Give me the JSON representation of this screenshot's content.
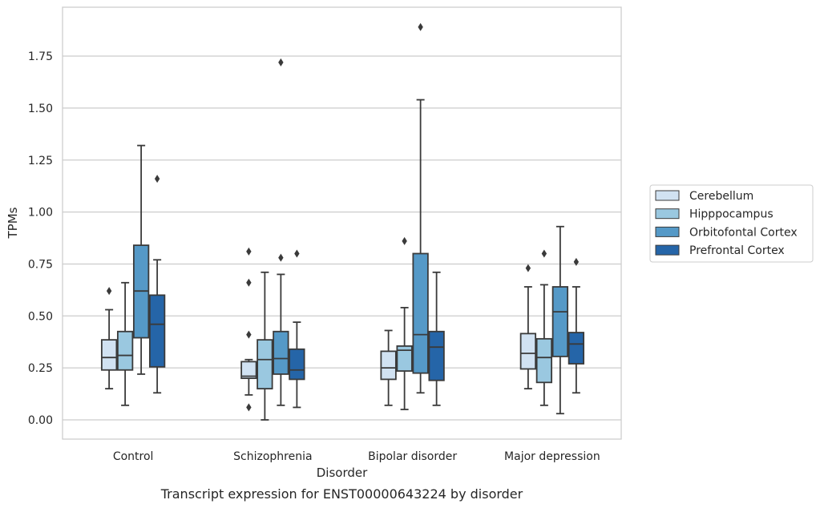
{
  "chart_data": {
    "type": "box",
    "caption": "Transcript expression for ENST00000643224 by disorder",
    "xlabel": "Disorder",
    "ylabel": "TPMs",
    "ylim": [
      -0.09,
      1.98
    ],
    "yticks": [
      0.0,
      0.25,
      0.5,
      0.75,
      1.0,
      1.25,
      1.5,
      1.75
    ],
    "ytick_labels": [
      "0.00",
      "0.25",
      "0.50",
      "0.75",
      "1.00",
      "1.25",
      "1.50",
      "1.75"
    ],
    "grid": "horizontal",
    "legend_position": "right",
    "categories": [
      "Control",
      "Schizophrenia",
      "Bipolar disorder",
      "Major depression"
    ],
    "series": [
      {
        "name": "Cerebellum",
        "color": "#d1e2f2",
        "boxes": [
          {
            "whislo": 0.15,
            "q1": 0.24,
            "med": 0.3,
            "q3": 0.385,
            "whishi": 0.53,
            "fliers": [
              0.62
            ]
          },
          {
            "whislo": 0.12,
            "q1": 0.2,
            "med": 0.21,
            "q3": 0.28,
            "whishi": 0.29,
            "fliers": [
              0.06,
              0.41,
              0.66,
              0.81
            ]
          },
          {
            "whislo": 0.07,
            "q1": 0.195,
            "med": 0.25,
            "q3": 0.33,
            "whishi": 0.43,
            "fliers": []
          },
          {
            "whislo": 0.15,
            "q1": 0.245,
            "med": 0.32,
            "q3": 0.415,
            "whishi": 0.64,
            "fliers": [
              0.73
            ]
          }
        ]
      },
      {
        "name": "Hipppocampus",
        "color": "#9ac8e0",
        "boxes": [
          {
            "whislo": 0.07,
            "q1": 0.24,
            "med": 0.31,
            "q3": 0.425,
            "whishi": 0.66,
            "fliers": []
          },
          {
            "whislo": 0.0,
            "q1": 0.15,
            "med": 0.29,
            "q3": 0.385,
            "whishi": 0.71,
            "fliers": []
          },
          {
            "whislo": 0.05,
            "q1": 0.235,
            "med": 0.335,
            "q3": 0.355,
            "whishi": 0.54,
            "fliers": [
              0.86
            ]
          },
          {
            "whislo": 0.07,
            "q1": 0.18,
            "med": 0.3,
            "q3": 0.39,
            "whishi": 0.65,
            "fliers": [
              0.8
            ]
          }
        ]
      },
      {
        "name": "Orbitofontal Cortex",
        "color": "#5599c7",
        "boxes": [
          {
            "whislo": 0.22,
            "q1": 0.395,
            "med": 0.62,
            "q3": 0.84,
            "whishi": 1.32,
            "fliers": []
          },
          {
            "whislo": 0.07,
            "q1": 0.22,
            "med": 0.295,
            "q3": 0.425,
            "whishi": 0.7,
            "fliers": [
              0.78,
              1.72
            ]
          },
          {
            "whislo": 0.13,
            "q1": 0.225,
            "med": 0.41,
            "q3": 0.8,
            "whishi": 1.54,
            "fliers": [
              1.89
            ]
          },
          {
            "whislo": 0.03,
            "q1": 0.305,
            "med": 0.52,
            "q3": 0.64,
            "whishi": 0.93,
            "fliers": []
          }
        ]
      },
      {
        "name": "Prefrontal Cortex",
        "color": "#2565a8",
        "boxes": [
          {
            "whislo": 0.13,
            "q1": 0.255,
            "med": 0.46,
            "q3": 0.6,
            "whishi": 0.77,
            "fliers": [
              1.16
            ]
          },
          {
            "whislo": 0.06,
            "q1": 0.195,
            "med": 0.24,
            "q3": 0.34,
            "whishi": 0.47,
            "fliers": [
              0.8
            ]
          },
          {
            "whislo": 0.07,
            "q1": 0.19,
            "med": 0.35,
            "q3": 0.425,
            "whishi": 0.71,
            "fliers": []
          },
          {
            "whislo": 0.13,
            "q1": 0.27,
            "med": 0.365,
            "q3": 0.42,
            "whishi": 0.64,
            "fliers": [
              0.76
            ]
          }
        ]
      }
    ]
  }
}
